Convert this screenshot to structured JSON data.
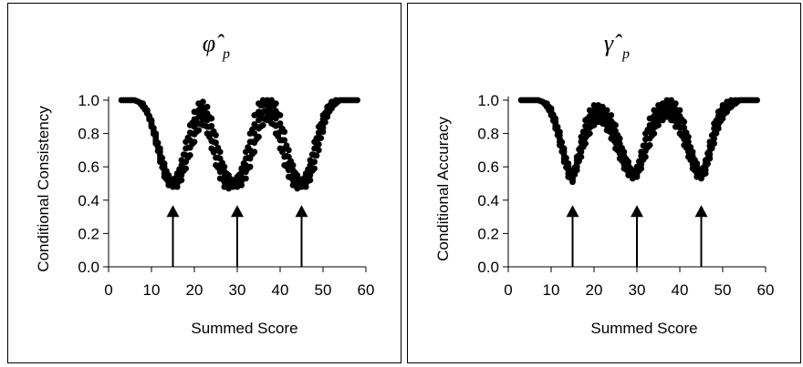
{
  "chart_data": [
    {
      "type": "scatter",
      "title": "φ̂",
      "title_subscript": "p",
      "xlabel": "Summed Score",
      "ylabel": "Conditional Consistency",
      "xlim": [
        0,
        60
      ],
      "ylim": [
        0,
        1.0
      ],
      "xticks": [
        "0",
        "10",
        "20",
        "30",
        "40",
        "50",
        "60"
      ],
      "yticks": [
        "0.0",
        "0.2",
        "0.4",
        "0.6",
        "0.8",
        "1.0"
      ],
      "grid": false,
      "annotations": [
        {
          "type": "arrow",
          "x": 15,
          "y_from": 0.0,
          "y_to": 0.37
        },
        {
          "type": "arrow",
          "x": 30,
          "y_from": 0.0,
          "y_to": 0.37
        },
        {
          "type": "arrow",
          "x": 45,
          "y_from": 0.0,
          "y_to": 0.37
        }
      ],
      "series": [
        {
          "x": [
            3,
            4,
            5,
            6,
            7,
            8,
            9,
            10,
            11,
            12,
            13,
            14,
            15,
            16,
            17,
            18,
            19,
            20,
            21,
            22,
            23,
            24,
            25,
            26,
            27,
            28,
            29,
            30,
            31,
            32,
            33,
            34,
            35,
            36,
            37,
            38,
            39,
            40,
            41,
            42,
            43,
            44,
            45,
            46,
            47,
            48,
            49,
            50,
            51,
            52,
            53,
            54,
            55,
            56,
            57,
            58
          ],
          "y": [
            1.0,
            1.0,
            1.0,
            1.0,
            0.99,
            0.97,
            0.93,
            0.86,
            0.77,
            0.67,
            0.58,
            0.52,
            0.5,
            0.52,
            0.58,
            0.67,
            0.76,
            0.84,
            0.9,
            0.92,
            0.88,
            0.8,
            0.7,
            0.61,
            0.54,
            0.51,
            0.5,
            0.51,
            0.54,
            0.61,
            0.7,
            0.8,
            0.88,
            0.93,
            0.94,
            0.93,
            0.89,
            0.81,
            0.71,
            0.62,
            0.55,
            0.51,
            0.5,
            0.52,
            0.58,
            0.67,
            0.77,
            0.86,
            0.93,
            0.97,
            0.99,
            1.0,
            1.0,
            1.0,
            1.0,
            1.0
          ],
          "spread": [
            0,
            0,
            0,
            0,
            0,
            0.01,
            0.01,
            0.02,
            0.03,
            0.04,
            0.04,
            0.03,
            0.02,
            0.04,
            0.06,
            0.08,
            0.09,
            0.09,
            0.08,
            0.07,
            0.08,
            0.09,
            0.09,
            0.08,
            0.06,
            0.04,
            0.02,
            0.03,
            0.05,
            0.08,
            0.1,
            0.11,
            0.1,
            0.08,
            0.06,
            0.07,
            0.09,
            0.1,
            0.1,
            0.08,
            0.06,
            0.04,
            0.02,
            0.04,
            0.06,
            0.08,
            0.07,
            0.05,
            0.03,
            0.02,
            0.01,
            0,
            0,
            0,
            0,
            0
          ]
        }
      ]
    },
    {
      "type": "scatter",
      "title": "γ̂",
      "title_subscript": "p",
      "xlabel": "Summed Score",
      "ylabel": "Conditional Accuracy",
      "xlim": [
        0,
        60
      ],
      "ylim": [
        0,
        1.0
      ],
      "xticks": [
        "0",
        "10",
        "20",
        "30",
        "40",
        "50",
        "60"
      ],
      "yticks": [
        "0.0",
        "0.2",
        "0.4",
        "0.6",
        "0.8",
        "1.0"
      ],
      "grid": false,
      "annotations": [
        {
          "type": "arrow",
          "x": 15,
          "y_from": 0.0,
          "y_to": 0.37
        },
        {
          "type": "arrow",
          "x": 30,
          "y_from": 0.0,
          "y_to": 0.37
        },
        {
          "type": "arrow",
          "x": 45,
          "y_from": 0.0,
          "y_to": 0.37
        }
      ],
      "series": [
        {
          "x": [
            3,
            4,
            5,
            6,
            7,
            8,
            9,
            10,
            11,
            12,
            13,
            14,
            15,
            16,
            17,
            18,
            19,
            20,
            21,
            22,
            23,
            24,
            25,
            26,
            27,
            28,
            29,
            30,
            31,
            32,
            33,
            34,
            35,
            36,
            37,
            38,
            39,
            40,
            41,
            42,
            43,
            44,
            45,
            46,
            47,
            48,
            49,
            50,
            51,
            52,
            53,
            54,
            55,
            56,
            57,
            58
          ],
          "y": [
            1.0,
            1.0,
            1.0,
            1.0,
            1.0,
            0.99,
            0.97,
            0.93,
            0.86,
            0.77,
            0.67,
            0.58,
            0.53,
            0.62,
            0.72,
            0.81,
            0.87,
            0.91,
            0.92,
            0.91,
            0.88,
            0.84,
            0.78,
            0.71,
            0.64,
            0.59,
            0.55,
            0.57,
            0.64,
            0.73,
            0.81,
            0.87,
            0.91,
            0.93,
            0.95,
            0.94,
            0.91,
            0.87,
            0.8,
            0.72,
            0.64,
            0.58,
            0.55,
            0.6,
            0.7,
            0.8,
            0.88,
            0.93,
            0.96,
            0.98,
            0.99,
            1.0,
            1.0,
            1.0,
            1.0,
            1.0
          ],
          "spread": [
            0,
            0,
            0,
            0,
            0,
            0,
            0.01,
            0.02,
            0.03,
            0.04,
            0.04,
            0.04,
            0.02,
            0.04,
            0.06,
            0.07,
            0.07,
            0.06,
            0.05,
            0.05,
            0.06,
            0.07,
            0.07,
            0.06,
            0.05,
            0.04,
            0.02,
            0.03,
            0.05,
            0.07,
            0.08,
            0.07,
            0.06,
            0.05,
            0.05,
            0.06,
            0.07,
            0.07,
            0.07,
            0.06,
            0.05,
            0.04,
            0.02,
            0.04,
            0.05,
            0.06,
            0.05,
            0.04,
            0.03,
            0.02,
            0.01,
            0,
            0,
            0,
            0,
            0
          ]
        }
      ]
    }
  ]
}
